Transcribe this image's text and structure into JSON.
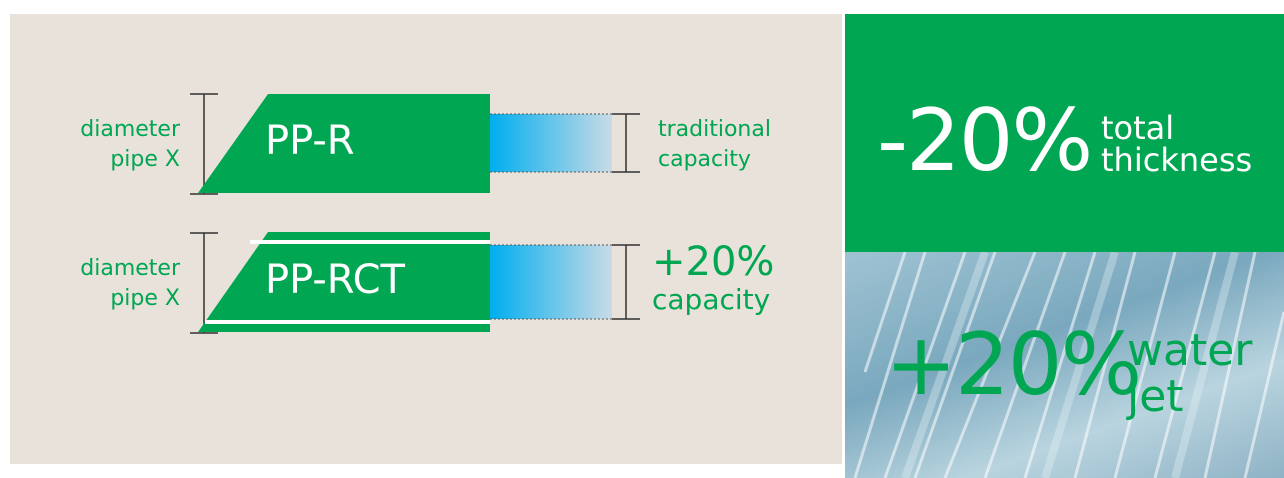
{
  "top_row": {
    "left_label_line1": "diameter",
    "left_label_line2": "pipe X",
    "pipe_label": "PP-R",
    "right_label_line1": "traditional",
    "right_label_line2": "capacity"
  },
  "bottom_row": {
    "left_label_line1": "diameter",
    "left_label_line2": "pipe X",
    "pipe_label": "PP-RCT",
    "right_label_line1": "+20%",
    "right_label_line2": "capacity"
  },
  "thickness_box": {
    "value": "-20%",
    "caption_line1": "total",
    "caption_line2": "thickness"
  },
  "water_box": {
    "value": "+20%",
    "caption_line1": "water",
    "caption_line2": "jet"
  },
  "colors": {
    "green": "#00a651",
    "background": "#e8e2da",
    "water_blue": "#00aeef"
  }
}
